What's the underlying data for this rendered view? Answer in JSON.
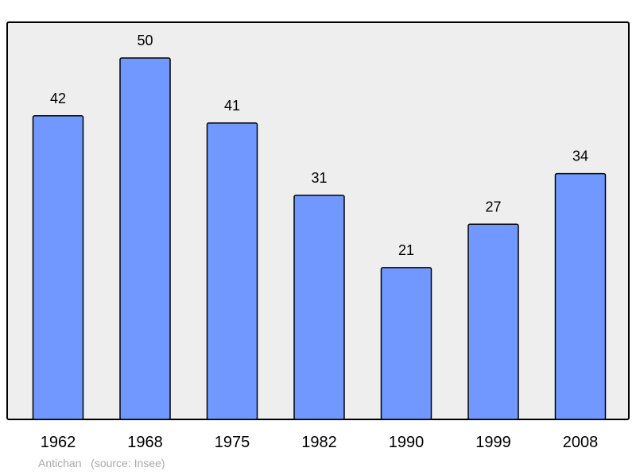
{
  "chart_data": {
    "type": "bar",
    "categories": [
      "1962",
      "1968",
      "1975",
      "1982",
      "1990",
      "1999",
      "2008"
    ],
    "values": [
      42,
      50,
      41,
      31,
      21,
      27,
      34
    ],
    "title": "",
    "xlabel": "",
    "ylabel": "",
    "ylim": [
      0,
      50
    ],
    "grid": false,
    "legend": "none",
    "colors": {
      "bar_fill": "#7098ff",
      "bar_stroke": "#000000",
      "plot_background": "#eeeeee"
    }
  },
  "footer": {
    "place": "Antichan",
    "source": "(source: Insee)"
  }
}
